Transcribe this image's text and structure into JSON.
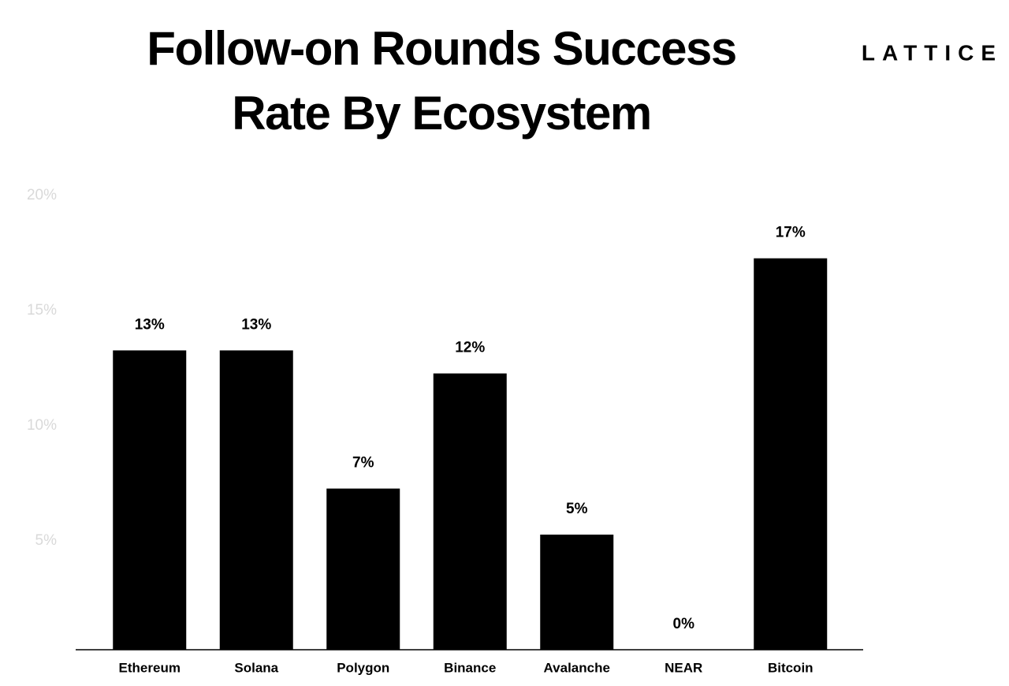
{
  "chart_data": {
    "type": "bar",
    "title_lines": [
      "Follow-on Rounds Success",
      "Rate By Ecosystem"
    ],
    "brand": "LATTICE",
    "categories": [
      "Ethereum",
      "Solana",
      "Polygon",
      "Binance",
      "Avalanche",
      "NEAR",
      "Bitcoin"
    ],
    "values": [
      13,
      13,
      7,
      12,
      5,
      0,
      17
    ],
    "value_labels": [
      "13%",
      "13%",
      "7%",
      "12%",
      "5%",
      "0%",
      "17%"
    ],
    "color": "#000000",
    "ylim": [
      0,
      20
    ],
    "yticks": [
      {
        "value": 5,
        "label": "5%"
      },
      {
        "value": 10,
        "label": "10%"
      },
      {
        "value": 15,
        "label": "15%"
      },
      {
        "value": 20,
        "label": "20%"
      }
    ],
    "grid": false
  }
}
